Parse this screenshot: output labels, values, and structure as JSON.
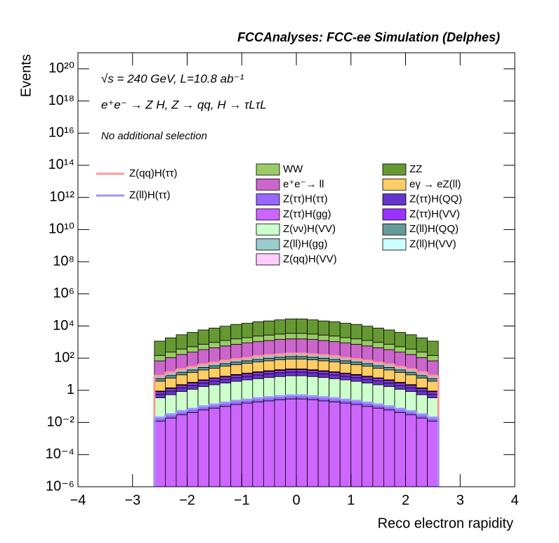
{
  "chart_data": {
    "type": "stacked_histogram",
    "title": "FCCAnalyses: FCC-ee Simulation (Delphes)",
    "annotations": [
      "√s = 240 GeV, L=10.8 ab⁻¹",
      "e⁺e⁻ → Z H, Z → qq, H → τLτL",
      "No additional selection"
    ],
    "x_label": "Reco electron rapidity",
    "y_label": "Events",
    "log_y": true,
    "xlim": [
      -4,
      4
    ],
    "xticks": [
      {
        "value": -4,
        "label": "−4"
      },
      {
        "value": -3,
        "label": "−3"
      },
      {
        "value": -2,
        "label": "−2"
      },
      {
        "value": -1,
        "label": "−1"
      },
      0,
      1,
      2,
      3,
      4
    ],
    "ylim": [
      1e-06,
      1e+21
    ],
    "yticks": [
      {
        "value": 1e-06,
        "label": "10⁻⁶"
      },
      {
        "value": 0.0001,
        "label": "10⁻⁴"
      },
      {
        "value": 0.01,
        "label": "10⁻²"
      },
      1,
      {
        "value": 100,
        "label": "10²"
      },
      {
        "value": 10000,
        "label": "10⁴"
      },
      {
        "value": 1000000.0,
        "label": "10⁶"
      },
      {
        "value": 100000000.0,
        "label": "10⁸"
      },
      {
        "value": 10000000000.0,
        "label": "10¹⁰"
      },
      {
        "value": 1000000000000.0,
        "label": "10¹²"
      },
      {
        "value": 100000000000000.0,
        "label": "10¹⁴"
      },
      {
        "value": 1e+16,
        "label": "10¹⁶"
      },
      {
        "value": 1e+18,
        "label": "10¹⁸"
      },
      {
        "value": 1e+20,
        "label": "10²⁰"
      }
    ],
    "bins": [
      -2.6,
      -2.4,
      -2.2,
      -2.0,
      -1.8,
      -1.6,
      -1.4,
      -1.2,
      -1.0,
      -0.8,
      -0.6,
      -0.4,
      -0.2,
      0,
      0.2,
      0.4,
      0.6,
      0.8,
      1.0,
      1.2,
      1.4,
      1.6,
      1.8,
      2.0,
      2.2,
      2.4,
      2.6
    ],
    "series": [
      {
        "name": "WW",
        "color": "#99cc66",
        "values": [
          80,
          130,
          200,
          280,
          400,
          520,
          680,
          860,
          1000,
          1300,
          1500,
          1700,
          1900,
          1900,
          1700,
          1500,
          1300,
          1000,
          860,
          680,
          520,
          400,
          280,
          200,
          130,
          80
        ]
      },
      {
        "name": "ZZ",
        "color": "#669933",
        "values": [
          1000,
          1600,
          2500,
          3500,
          5000,
          6500,
          8500,
          11000,
          13000,
          16000,
          18000,
          21000,
          24000,
          24000,
          21000,
          18000,
          16000,
          13000,
          11000,
          8500,
          6500,
          5000,
          3500,
          2500,
          1600,
          1000
        ]
      },
      {
        "name": "e⁺e⁻→ ll",
        "color": "#cc66cc",
        "values": [
          60,
          95,
          150,
          210,
          300,
          390,
          510,
          650,
          780,
          950,
          1100,
          1300,
          1400,
          1400,
          1300,
          1100,
          950,
          780,
          650,
          510,
          390,
          300,
          210,
          150,
          95,
          60
        ]
      },
      {
        "name": "eγ → eZ(ll)",
        "color": "#ffcc66",
        "values": [
          2.8,
          4.4,
          7,
          9.8,
          14,
          18,
          24,
          30,
          36,
          44,
          52,
          60,
          67,
          67,
          60,
          52,
          44,
          36,
          30,
          24,
          18,
          14,
          9.8,
          7,
          4.4,
          2.8
        ]
      },
      {
        "name": "Z(ττ)H(ττ)",
        "color": "#9966ff",
        "values": [
          0.008,
          0.013,
          0.02,
          0.028,
          0.04,
          0.052,
          0.068,
          0.086,
          0.1,
          0.13,
          0.15,
          0.17,
          0.19,
          0.19,
          0.17,
          0.15,
          0.13,
          0.1,
          0.086,
          0.068,
          0.052,
          0.04,
          0.028,
          0.02,
          0.013,
          0.008
        ]
      },
      {
        "name": "Z(ττ)H(QQ)",
        "color": "#6633cc",
        "values": [
          0.24,
          0.38,
          0.6,
          0.84,
          1.2,
          1.6,
          2,
          2.6,
          3.1,
          3.8,
          4.4,
          5.1,
          5.7,
          5.7,
          5.1,
          4.4,
          3.8,
          3.1,
          2.6,
          2,
          1.6,
          1.2,
          0.84,
          0.6,
          0.38,
          0.24
        ]
      },
      {
        "name": "Z(ττ)H(gg)",
        "color": "#cc66ff",
        "values": [
          0.012,
          0.019,
          0.03,
          0.042,
          0.06,
          0.078,
          0.1,
          0.13,
          0.16,
          0.19,
          0.22,
          0.26,
          0.29,
          0.29,
          0.26,
          0.22,
          0.19,
          0.16,
          0.13,
          0.1,
          0.078,
          0.06,
          0.042,
          0.03,
          0.019,
          0.012
        ]
      },
      {
        "name": "Z(ττ)H(VV)",
        "color": "#9933ff",
        "values": [
          0.24,
          0.38,
          0.6,
          0.84,
          1.2,
          1.6,
          2,
          2.6,
          3.1,
          3.8,
          4.4,
          5.1,
          5.7,
          5.7,
          5.1,
          4.4,
          3.8,
          3.1,
          2.6,
          2,
          1.6,
          1.2,
          0.84,
          0.6,
          0.38,
          0.24
        ]
      },
      {
        "name": "Z(νν)H(VV)",
        "color": "#ccffcc",
        "values": [
          0.32,
          0.5,
          0.8,
          1.1,
          1.6,
          2.1,
          2.7,
          3.4,
          4.2,
          5,
          5.9,
          6.8,
          7.6,
          7.6,
          6.8,
          5.9,
          5,
          4.2,
          3.4,
          2.7,
          2.1,
          1.6,
          1.1,
          0.8,
          0.5,
          0.32
        ]
      },
      {
        "name": "Z(ll)H(QQ)",
        "color": "#669999",
        "values": [
          1.6,
          2.5,
          4,
          5.6,
          8,
          10,
          14,
          17,
          21,
          25,
          30,
          34,
          38,
          38,
          34,
          30,
          25,
          21,
          17,
          14,
          10,
          8,
          5.6,
          4,
          2.5,
          1.6
        ]
      },
      {
        "name": "Z(ll)H(gg)",
        "color": "#99cccc",
        "values": [
          2.4,
          3.8,
          6,
          8.4,
          12,
          16,
          20,
          26,
          31,
          38,
          44,
          51,
          57,
          57,
          51,
          44,
          38,
          31,
          26,
          20,
          16,
          12,
          8.4,
          6,
          3.8,
          2.4
        ]
      },
      {
        "name": "Z(ll)H(VV)",
        "color": "#ccffff",
        "values": [
          0.04,
          0.063,
          0.1,
          0.14,
          0.2,
          0.26,
          0.34,
          0.43,
          0.52,
          0.63,
          0.74,
          0.85,
          0.95,
          0.95,
          0.85,
          0.74,
          0.63,
          0.52,
          0.43,
          0.34,
          0.26,
          0.2,
          0.14,
          0.1,
          0.063,
          0.04
        ]
      },
      {
        "name": "Z(qq)H(VV)",
        "color": "#ffccff",
        "values": [
          0.04,
          0.063,
          0.1,
          0.14,
          0.2,
          0.26,
          0.34,
          0.43,
          0.52,
          0.63,
          0.74,
          0.85,
          0.95,
          0.95,
          0.85,
          0.74,
          0.63,
          0.52,
          0.43,
          0.34,
          0.26,
          0.2,
          0.14,
          0.1,
          0.063,
          0.04
        ]
      }
    ],
    "lines": [
      {
        "name": "Z(qq)H(ττ)",
        "color": "#ff9999",
        "values": [
          8,
          13,
          20,
          28,
          40,
          52,
          68,
          86,
          100,
          130,
          150,
          170,
          190,
          190,
          170,
          150,
          130,
          100,
          86,
          68,
          52,
          40,
          28,
          20,
          13,
          8
        ]
      },
      {
        "name": "Z(ll)H(ττ)",
        "color": "#9999ff",
        "values": [
          0.02,
          0.032,
          0.05,
          0.07,
          0.1,
          0.13,
          0.17,
          0.22,
          0.26,
          0.32,
          0.37,
          0.43,
          0.48,
          0.48,
          0.43,
          0.37,
          0.32,
          0.26,
          0.22,
          0.17,
          0.13,
          0.1,
          0.07,
          0.05,
          0.032,
          0.02
        ]
      }
    ]
  }
}
